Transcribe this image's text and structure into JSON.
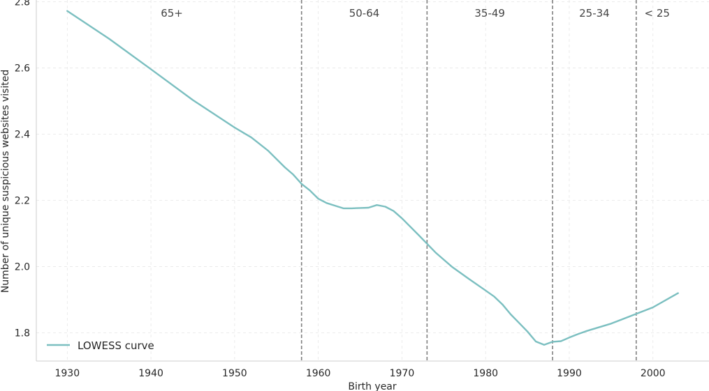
{
  "chart_data": {
    "type": "line",
    "title": "",
    "xlabel": "Birth year",
    "ylabel": "Number of unique suspicious websites visited",
    "xlim": [
      1926.3,
      2006.7
    ],
    "ylim": [
      1.715,
      2.805
    ],
    "x_ticks": [
      1930,
      1940,
      1950,
      1960,
      1970,
      1980,
      1990,
      2000
    ],
    "y_ticks": [
      1.8,
      2.0,
      2.2,
      2.4,
      2.6,
      2.8
    ],
    "x_tick_labels": [
      "1930",
      "1940",
      "1950",
      "1960",
      "1970",
      "1980",
      "1990",
      "2000"
    ],
    "y_tick_labels": [
      "1.8",
      "2.0",
      "2.2",
      "2.4",
      "2.6",
      "2.8"
    ],
    "grid": true,
    "color": "#7bbfc0",
    "series": [
      {
        "name": "LOWESS curve",
        "x": [
          1930,
          1935,
          1940,
          1945,
          1950,
          1952,
          1954,
          1956,
          1957,
          1958,
          1959,
          1960,
          1961,
          1962,
          1963,
          1964,
          1965,
          1966,
          1967,
          1968,
          1969,
          1970,
          1972,
          1974,
          1976,
          1978,
          1980,
          1981,
          1982,
          1983,
          1984,
          1985,
          1986,
          1987,
          1988,
          1989,
          1990,
          1991,
          1992,
          1995,
          2000,
          2003
        ],
        "y": [
          2.772,
          2.688,
          2.596,
          2.503,
          2.42,
          2.39,
          2.35,
          2.3,
          2.278,
          2.25,
          2.23,
          2.205,
          2.192,
          2.184,
          2.176,
          2.176,
          2.177,
          2.178,
          2.186,
          2.181,
          2.168,
          2.146,
          2.095,
          2.043,
          1.999,
          1.963,
          1.928,
          1.91,
          1.886,
          1.856,
          1.83,
          1.804,
          1.774,
          1.764,
          1.773,
          1.775,
          1.786,
          1.796,
          1.805,
          1.828,
          1.877,
          1.92
        ]
      }
    ],
    "vertical_lines": [
      1958,
      1973,
      1988,
      1998
    ],
    "group_labels": [
      {
        "text": "65+",
        "x": 1942.5
      },
      {
        "text": "50-64",
        "x": 1965.5
      },
      {
        "text": "35-49",
        "x": 1980.5
      },
      {
        "text": "25-34",
        "x": 1993
      },
      {
        "text": "< 25",
        "x": 2000.5
      }
    ],
    "legend": {
      "position": "bottom-left",
      "label": "LOWESS curve"
    }
  }
}
